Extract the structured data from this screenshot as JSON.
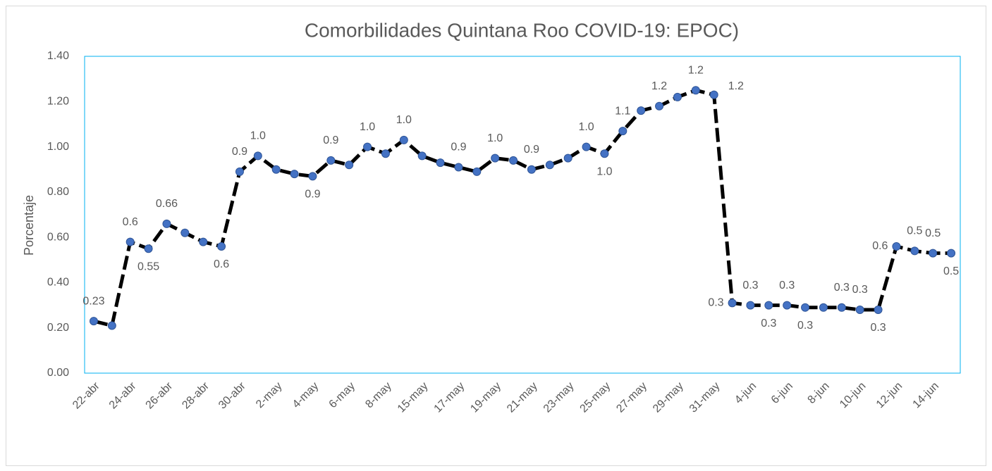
{
  "chart_data": {
    "type": "line",
    "title": "Comorbilidades Quintana Roo COVID-19: EPOC)",
    "y_label": "Porcentaje",
    "categories": [
      "22-abr",
      null,
      "24-abr",
      null,
      "26-abr",
      null,
      "28-abr",
      null,
      "30-abr",
      null,
      "2-may",
      null,
      "4-may",
      null,
      "6-may",
      null,
      "8-may",
      null,
      "15-may",
      null,
      "17-may",
      null,
      "19-may",
      null,
      "21-may",
      null,
      "23-may",
      null,
      "25-may",
      null,
      "27-may",
      null,
      "29-may",
      null,
      "31-may",
      null,
      "4-jun",
      null,
      "6-jun",
      null,
      "8-jun",
      null,
      "10-jun",
      null,
      "12-jun",
      null,
      "14-jun",
      null
    ],
    "series": [
      {
        "name": "EPOC",
        "color": "#000000",
        "marker_color": "#4472c4",
        "values": [
          0.23,
          0.21,
          0.58,
          0.55,
          0.66,
          0.62,
          0.58,
          0.56,
          0.89,
          0.96,
          0.9,
          0.88,
          0.87,
          0.94,
          0.92,
          1.0,
          0.97,
          1.03,
          0.96,
          0.93,
          0.91,
          0.89,
          0.95,
          0.94,
          0.9,
          0.92,
          0.95,
          1.0,
          0.97,
          1.07,
          1.16,
          1.18,
          1.22,
          1.25,
          1.23,
          0.31,
          0.3,
          0.3,
          0.3,
          0.29,
          0.29,
          0.29,
          0.28,
          0.28,
          0.56,
          0.54,
          0.53,
          0.53
        ],
        "value_labels": [
          "0.23",
          null,
          "0.6",
          "0.55",
          "0.66",
          null,
          null,
          "0.6",
          "0.9",
          "1.0",
          null,
          null,
          "0.9",
          "0.9",
          null,
          "1.0",
          null,
          "1.0",
          null,
          null,
          "0.9",
          null,
          "1.0",
          null,
          "0.9",
          null,
          null,
          "1.0",
          "1.0",
          "1.1",
          null,
          "1.2",
          null,
          "1.2",
          "1.2",
          "0.3",
          "0.3",
          "0.3",
          "0.3",
          "0.3",
          null,
          "0.3",
          "0.3",
          "0.3",
          "0.6",
          "0.5",
          "0.5",
          "0.5"
        ]
      }
    ],
    "ylim": [
      0,
      1.4
    ],
    "yticks": [
      {
        "value": 0,
        "label": "0.00"
      },
      {
        "value": 0.2,
        "label": "0.20"
      },
      {
        "value": 0.4,
        "label": "0.40"
      },
      {
        "value": 0.6,
        "label": "0.60"
      },
      {
        "value": 0.8,
        "label": "0.80"
      },
      {
        "value": 1.0,
        "label": "1.00"
      },
      {
        "value": 1.2,
        "label": "1.20"
      },
      {
        "value": 1.4,
        "label": "1.40"
      }
    ],
    "grid": false
  }
}
